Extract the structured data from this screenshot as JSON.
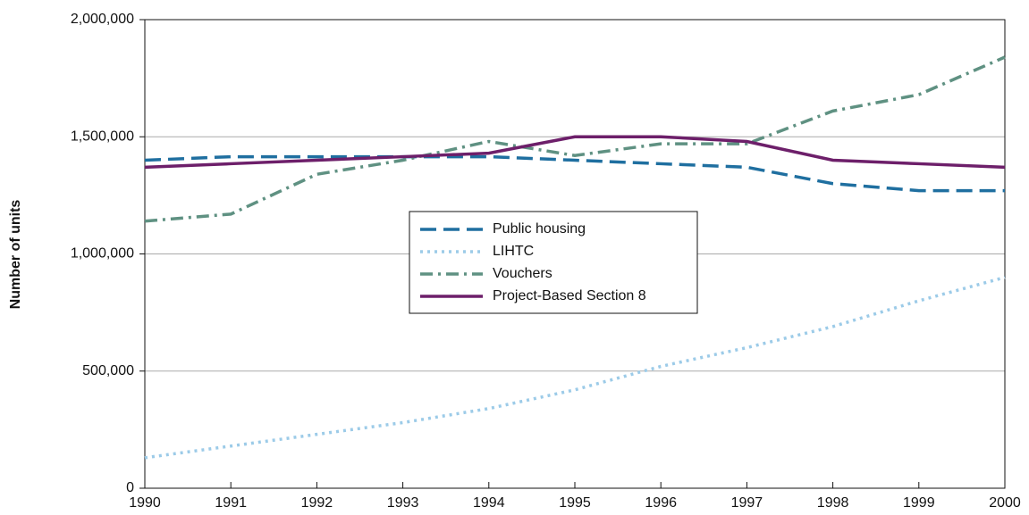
{
  "chart_data": {
    "type": "line",
    "y_label": "Number of units",
    "x": [
      1990,
      1991,
      1992,
      1993,
      1994,
      1995,
      1996,
      1997,
      1998,
      1999,
      2000
    ],
    "xlim": [
      1990,
      2000
    ],
    "xticks": [
      1990,
      1991,
      1992,
      1993,
      1994,
      1995,
      1996,
      1997,
      1998,
      1999,
      2000
    ],
    "ylim": [
      0,
      2000000
    ],
    "yticks": [
      0,
      {
        "value": 500000,
        "label": "500,000"
      },
      {
        "value": 1000000,
        "label": "1,000,000"
      },
      {
        "value": 1500000,
        "label": "1,500,000"
      },
      {
        "value": 2000000,
        "label": "2,000,000"
      }
    ],
    "grid": true,
    "legend": "center",
    "series": [
      {
        "name": "Public housing",
        "color": "#1f6fa0",
        "dash": "dashed",
        "values": [
          1400000,
          1415000,
          1415000,
          1415000,
          1415000,
          1400000,
          1385000,
          1370000,
          1300000,
          1270000,
          1270000
        ]
      },
      {
        "name": "LIHTC",
        "color": "#9ccbe8",
        "dash": "dotted",
        "values": [
          130000,
          180000,
          230000,
          280000,
          340000,
          420000,
          520000,
          600000,
          690000,
          800000,
          900000
        ]
      },
      {
        "name": "Vouchers",
        "color": "#5f9182",
        "dash": "dashdot",
        "values": [
          1140000,
          1170000,
          1340000,
          1400000,
          1480000,
          1420000,
          1470000,
          1470000,
          1610000,
          1680000,
          1840000
        ]
      },
      {
        "name": "Project-Based Section 8",
        "color": "#6d1f6a",
        "dash": "solid",
        "values": [
          1370000,
          1385000,
          1400000,
          1415000,
          1430000,
          1500000,
          1500000,
          1480000,
          1400000,
          1385000,
          1370000
        ]
      }
    ]
  }
}
